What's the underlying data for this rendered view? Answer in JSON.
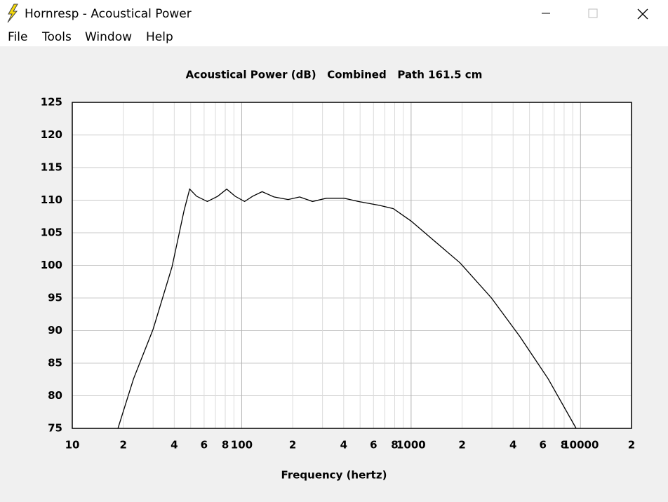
{
  "window": {
    "title": "Hornresp - Acoustical Power",
    "menu": [
      "File",
      "Tools",
      "Window",
      "Help"
    ]
  },
  "chart_data": {
    "type": "line",
    "title": "Acoustical Power (dB)   Combined   Path 161.5 cm",
    "x_label": "Frequency (hertz)",
    "x_scale": "log",
    "xlim": [
      10,
      20000
    ],
    "xticks": [
      10,
      {
        "value": 20,
        "label": "2"
      },
      {
        "value": 40,
        "label": "4"
      },
      {
        "value": 60,
        "label": "6"
      },
      {
        "value": 80,
        "label": "8"
      },
      100,
      {
        "value": 200,
        "label": "2"
      },
      {
        "value": 400,
        "label": "4"
      },
      {
        "value": 600,
        "label": "6"
      },
      {
        "value": 800,
        "label": "8"
      },
      1000,
      {
        "value": 2000,
        "label": "2"
      },
      {
        "value": 4000,
        "label": "4"
      },
      {
        "value": 6000,
        "label": "6"
      },
      {
        "value": 8000,
        "label": "8"
      },
      10000,
      {
        "value": 20000,
        "label": "2"
      }
    ],
    "x_minor_ticks": [
      30,
      50,
      70,
      90,
      300,
      500,
      700,
      900,
      3000,
      5000,
      7000,
      9000
    ],
    "ylim": [
      75,
      125
    ],
    "yticks": [
      75,
      80,
      85,
      90,
      95,
      100,
      105,
      110,
      115,
      120,
      125
    ],
    "grid": true,
    "series": [
      {
        "name": "Combined",
        "color": "#000000",
        "x": [
          18.6,
          23,
          30,
          38.8,
          45.7,
          49.3,
          54.2,
          62.7,
          72.2,
          81.6,
          91.5,
          104,
          116,
          132,
          155,
          188,
          220,
          262,
          317,
          402,
          488,
          650,
          786,
          1000,
          1393,
          1943,
          2980,
          4380,
          6440,
          9420
        ],
        "values": [
          75,
          82.6,
          90.2,
          99.8,
          108.4,
          111.7,
          110.6,
          109.8,
          110.6,
          111.7,
          110.6,
          109.8,
          110.6,
          111.3,
          110.5,
          110.1,
          110.5,
          109.8,
          110.3,
          110.3,
          109.8,
          109.2,
          108.7,
          106.8,
          103.6,
          100.4,
          95,
          89.1,
          82.6,
          75
        ]
      }
    ]
  }
}
